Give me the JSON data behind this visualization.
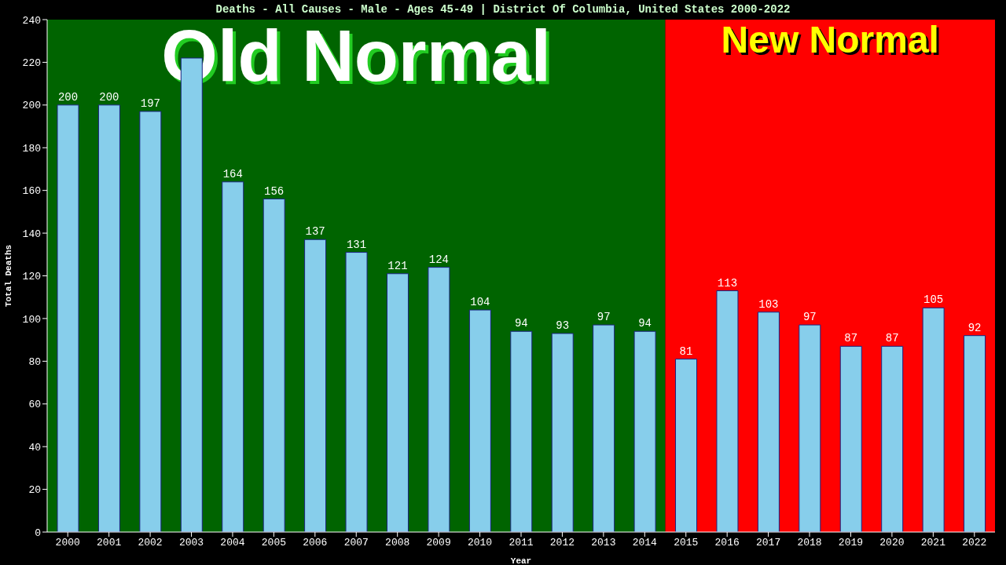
{
  "chart_data": {
    "type": "bar",
    "title": "Deaths - All Causes - Male - Ages 45-49 | District Of Columbia, United States 2000-2022",
    "xlabel": "Year",
    "ylabel": "Total Deaths",
    "categories": [
      "2000",
      "2001",
      "2002",
      "2003",
      "2004",
      "2005",
      "2006",
      "2007",
      "2008",
      "2009",
      "2010",
      "2011",
      "2012",
      "2013",
      "2014",
      "2015",
      "2016",
      "2017",
      "2018",
      "2019",
      "2020",
      "2021",
      "2022"
    ],
    "values": [
      200,
      200,
      197,
      222,
      164,
      156,
      137,
      131,
      121,
      124,
      104,
      94,
      93,
      97,
      94,
      81,
      113,
      103,
      97,
      87,
      87,
      105,
      92
    ],
    "value_labels": [
      "200",
      "200",
      "197",
      null,
      "164",
      "156",
      "137",
      "131",
      "121",
      "124",
      "104",
      "94",
      "93",
      "97",
      "94",
      "81",
      "113",
      "103",
      "97",
      "87",
      "87",
      "105",
      "92"
    ],
    "color": "#87ceeb",
    "ylim": [
      0,
      240
    ],
    "yticks": [
      0,
      20,
      40,
      60,
      80,
      100,
      120,
      140,
      160,
      180,
      200,
      220,
      240
    ],
    "bands": [
      {
        "axis": "x",
        "from": "2000",
        "to": "2014",
        "label": "Old Normal",
        "color": "#006400"
      },
      {
        "axis": "x",
        "from": "2015",
        "to": "2022",
        "label": "New Normal",
        "color": "#ff0000"
      }
    ],
    "grid": false,
    "legend": false
  }
}
